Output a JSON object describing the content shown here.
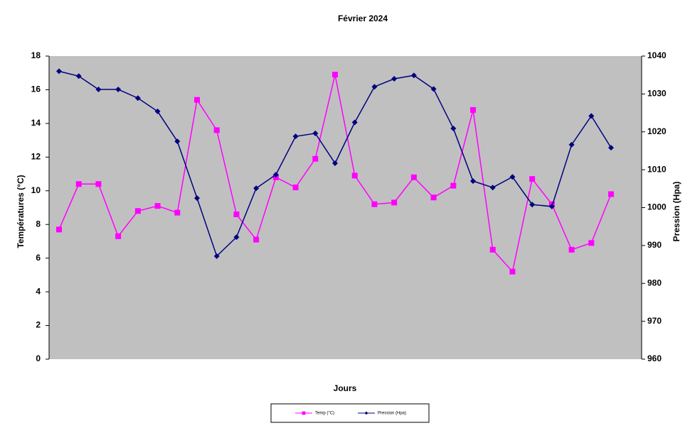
{
  "chart_data": {
    "type": "line",
    "title": "Février 2024",
    "xlabel": "Jours",
    "ylabel": "Températures (°C)",
    "y2label": "Pression (Hpa)",
    "categories": [
      null,
      null,
      null,
      null,
      null,
      null,
      null,
      null,
      null,
      null,
      null,
      null,
      null,
      null,
      null,
      null,
      null,
      null,
      null,
      null,
      null,
      null,
      null,
      null,
      null,
      null,
      null,
      null,
      null
    ],
    "ylim": [
      0,
      18
    ],
    "yticks": [
      0,
      2,
      4,
      6,
      8,
      10,
      12,
      14,
      16,
      18
    ],
    "y2lim": [
      960,
      1040
    ],
    "y2ticks": [
      960,
      970,
      980,
      990,
      1000,
      1010,
      1020,
      1030,
      1040
    ],
    "background": "#c0c0c0",
    "series": [
      {
        "name": "Temp (°C)",
        "color": "#ff00ff",
        "marker": "square",
        "values": [
          7.7,
          10.4,
          10.4,
          7.3,
          8.8,
          9.1,
          8.7,
          15.4,
          13.6,
          8.6,
          7.1,
          10.8,
          10.2,
          11.9,
          16.9,
          10.9,
          9.2,
          9.3,
          10.8,
          9.6,
          10.3,
          14.8,
          6.5,
          5.2,
          10.7,
          9.2,
          6.5,
          6.9,
          9.8
        ]
      },
      {
        "name": "Pression (Hpa)",
        "color": "#000080",
        "marker": "diamond",
        "axis": "y2",
        "values": [
          1036.0,
          1034.7,
          1031.2,
          1031.2,
          1028.9,
          1025.4,
          1017.5,
          1002.5,
          987.2,
          992.2,
          1005.1,
          1008.7,
          1018.8,
          1019.6,
          1011.7,
          1022.5,
          1031.9,
          1034.0,
          1034.9,
          1031.3,
          1020.9,
          1007.0,
          1005.3,
          1008.1,
          1000.8,
          1000.3,
          1016.6,
          1024.2,
          1015.8
        ]
      }
    ]
  }
}
